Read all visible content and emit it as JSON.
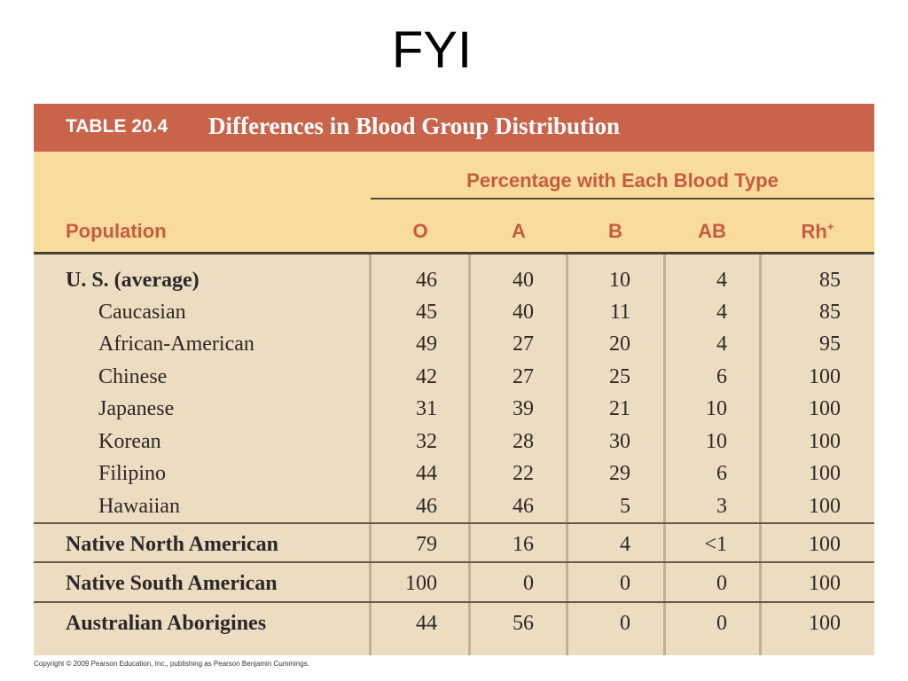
{
  "slide": {
    "title": "FYI"
  },
  "table": {
    "number": "TABLE 20.4",
    "caption": "Differences in Blood Group Distribution",
    "column_group_label": "Percentage with Each Blood Type",
    "population_header": "Population",
    "columns": [
      "O",
      "A",
      "B",
      "AB",
      "Rh"
    ],
    "rh_superscript": "+",
    "rows": [
      {
        "population": "U. S. (average)",
        "values": [
          "46",
          "40",
          "10",
          "4",
          "85"
        ]
      },
      {
        "population": "Caucasian",
        "values": [
          "45",
          "40",
          "11",
          "4",
          "85"
        ]
      },
      {
        "population": "African-American",
        "values": [
          "49",
          "27",
          "20",
          "4",
          "95"
        ]
      },
      {
        "population": "Chinese",
        "values": [
          "42",
          "27",
          "25",
          "6",
          "100"
        ]
      },
      {
        "population": "Japanese",
        "values": [
          "31",
          "39",
          "21",
          "10",
          "100"
        ]
      },
      {
        "population": "Korean",
        "values": [
          "32",
          "28",
          "30",
          "10",
          "100"
        ]
      },
      {
        "population": "Filipino",
        "values": [
          "44",
          "22",
          "29",
          "6",
          "100"
        ]
      },
      {
        "population": "Hawaiian",
        "values": [
          "46",
          "46",
          "5",
          "3",
          "100"
        ]
      },
      {
        "population": "Native North American",
        "values": [
          "79",
          "16",
          "4",
          "<1",
          "100"
        ]
      },
      {
        "population": "Native South American",
        "values": [
          "100",
          "0",
          "0",
          "0",
          "100"
        ]
      },
      {
        "population": "Australian Aborigines",
        "values": [
          "44",
          "56",
          "0",
          "0",
          "100"
        ]
      }
    ]
  },
  "footer": {
    "copyright": "Copyright © 2009 Pearson Education, Inc., publishing as Pearson Benjamin Cummings."
  },
  "colors": {
    "title_bar": "#c9634a",
    "header_band": "#f9dc9c",
    "body_band": "#ecdcc2",
    "header_text": "#c75b3f"
  }
}
